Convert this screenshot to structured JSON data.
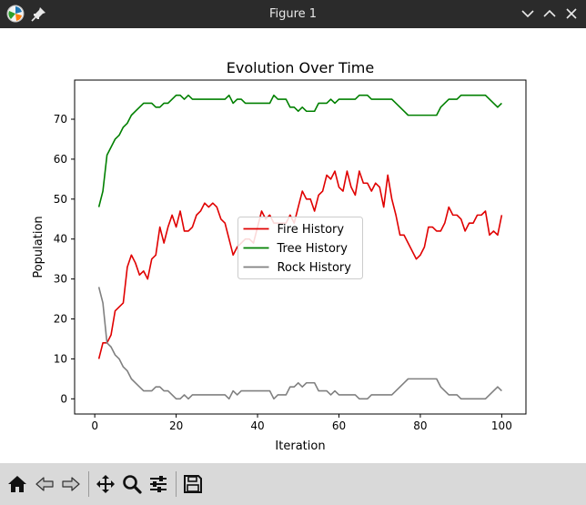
{
  "window": {
    "title": "Figure 1",
    "controls": [
      "chevron-down",
      "chevron-up",
      "close"
    ]
  },
  "toolbar": {
    "tools": [
      "home",
      "back",
      "forward",
      "pan",
      "zoom",
      "configure-subplots",
      "save"
    ]
  },
  "chart_data": {
    "type": "line",
    "title": "Evolution Over Time",
    "xlabel": "Iteration",
    "ylabel": "Population",
    "xlim": [
      -4.95,
      105.95
    ],
    "ylim": [
      -3.8,
      79.8
    ],
    "xticks": [
      0,
      20,
      40,
      60,
      80,
      100
    ],
    "yticks": [
      0,
      10,
      20,
      30,
      40,
      50,
      60,
      70
    ],
    "grid": false,
    "legend_position": "center",
    "x": [
      1,
      2,
      3,
      4,
      5,
      6,
      7,
      8,
      9,
      10,
      11,
      12,
      13,
      14,
      15,
      16,
      17,
      18,
      19,
      20,
      21,
      22,
      23,
      24,
      25,
      26,
      27,
      28,
      29,
      30,
      31,
      32,
      33,
      34,
      35,
      36,
      37,
      38,
      39,
      40,
      41,
      42,
      43,
      44,
      45,
      46,
      47,
      48,
      49,
      50,
      51,
      52,
      53,
      54,
      55,
      56,
      57,
      58,
      59,
      60,
      61,
      62,
      63,
      64,
      65,
      66,
      67,
      68,
      69,
      70,
      71,
      72,
      73,
      74,
      75,
      76,
      77,
      78,
      79,
      80,
      81,
      82,
      83,
      84,
      85,
      86,
      87,
      88,
      89,
      90,
      91,
      92,
      93,
      94,
      95,
      96,
      97,
      98,
      99,
      100
    ],
    "series": [
      {
        "name": "Fire History",
        "color": "#e00000",
        "values": [
          10,
          14,
          14,
          16,
          22,
          23,
          24,
          33,
          36,
          34,
          31,
          32,
          30,
          35,
          36,
          43,
          39,
          43,
          46,
          43,
          47,
          42,
          42,
          43,
          46,
          47,
          49,
          48,
          49,
          48,
          45,
          44,
          40,
          36,
          38,
          39,
          40,
          40,
          39,
          43,
          47,
          45,
          46,
          44,
          44,
          44,
          44,
          46,
          44,
          48,
          52,
          50,
          50,
          47,
          51,
          52,
          56,
          55,
          57,
          53,
          52,
          57,
          53,
          51,
          57,
          54,
          54,
          52,
          54,
          53,
          48,
          56,
          50,
          46,
          41,
          41,
          39,
          37,
          35,
          36,
          38,
          43,
          43,
          42,
          42,
          44,
          48,
          46,
          46,
          45,
          42,
          44,
          44,
          46,
          46,
          47,
          41,
          42,
          41,
          46
        ]
      },
      {
        "name": "Tree History",
        "color": "#008000",
        "values": [
          48,
          52,
          61,
          63,
          65,
          66,
          68,
          69,
          71,
          72,
          73,
          74,
          74,
          74,
          73,
          73,
          74,
          74,
          75,
          76,
          76,
          75,
          76,
          75,
          75,
          75,
          75,
          75,
          75,
          75,
          75,
          75,
          76,
          74,
          75,
          75,
          74,
          74,
          74,
          74,
          74,
          74,
          74,
          76,
          75,
          75,
          75,
          73,
          73,
          72,
          73,
          72,
          72,
          72,
          74,
          74,
          74,
          75,
          74,
          75,
          75,
          75,
          75,
          75,
          76,
          76,
          76,
          75,
          75,
          75,
          75,
          75,
          75,
          74,
          73,
          72,
          71,
          71,
          71,
          71,
          71,
          71,
          71,
          71,
          73,
          74,
          75,
          75,
          75,
          76,
          76,
          76,
          76,
          76,
          76,
          76,
          75,
          74,
          73,
          74
        ]
      },
      {
        "name": "Rock History",
        "color": "#808080",
        "values": [
          28,
          24,
          14,
          13,
          11,
          10,
          8,
          7,
          5,
          4,
          3,
          2,
          2,
          2,
          3,
          3,
          2,
          2,
          1,
          0,
          0,
          1,
          0,
          1,
          1,
          1,
          1,
          1,
          1,
          1,
          1,
          1,
          0,
          2,
          1,
          2,
          2,
          2,
          2,
          2,
          2,
          2,
          2,
          0,
          1,
          1,
          1,
          3,
          3,
          4,
          3,
          4,
          4,
          4,
          2,
          2,
          2,
          1,
          2,
          1,
          1,
          1,
          1,
          1,
          0,
          0,
          0,
          1,
          1,
          1,
          1,
          1,
          1,
          2,
          3,
          4,
          5,
          5,
          5,
          5,
          5,
          5,
          5,
          5,
          3,
          2,
          1,
          1,
          1,
          0,
          0,
          0,
          0,
          0,
          0,
          0,
          1,
          2,
          3,
          2
        ]
      }
    ]
  }
}
